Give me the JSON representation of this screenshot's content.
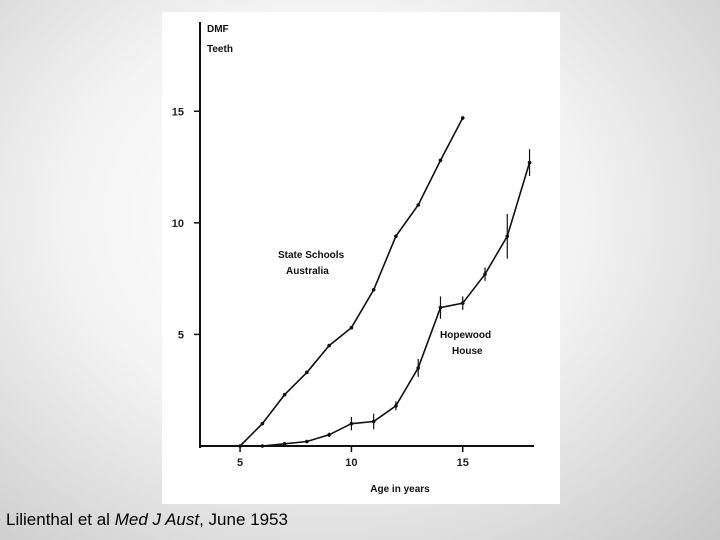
{
  "caption": {
    "author": "Lilienthal et al",
    "journal": "Med J Aust",
    "date": ", June 1953"
  },
  "chart_data": {
    "type": "line",
    "ylabel_line1": "DMF",
    "ylabel_line2": "Teeth",
    "xlabel": "Age in years",
    "xlim": [
      3.2,
      18.2
    ],
    "ylim": [
      0,
      19
    ],
    "x_ticks": [
      5,
      10,
      15
    ],
    "y_ticks": [
      5,
      10,
      15
    ],
    "x_tick_labels": [
      "5",
      "10",
      "15"
    ],
    "y_tick_labels": [
      "5",
      "10",
      "15"
    ],
    "series": [
      {
        "label_line1": "State Schools",
        "label_line2": "Australia",
        "x": [
          5,
          6,
          7,
          8,
          9,
          10,
          11,
          12,
          13,
          14,
          15
        ],
        "y": [
          0,
          1.0,
          2.3,
          3.3,
          4.5,
          5.3,
          7.0,
          9.4,
          10.8,
          12.8,
          14.7
        ]
      },
      {
        "label_line1": "Hopewood",
        "label_line2": "House",
        "x": [
          6,
          7,
          8,
          9,
          10,
          11,
          12,
          13,
          14,
          15,
          16,
          17,
          18
        ],
        "y": [
          0,
          0.1,
          0.2,
          0.5,
          1.0,
          1.1,
          1.8,
          3.5,
          6.2,
          6.4,
          7.7,
          9.4,
          12.7
        ],
        "error": [
          0,
          0,
          0.05,
          0.1,
          0.3,
          0.35,
          0.2,
          0.4,
          0.5,
          0.3,
          0.3,
          1.0,
          0.6
        ]
      }
    ]
  }
}
